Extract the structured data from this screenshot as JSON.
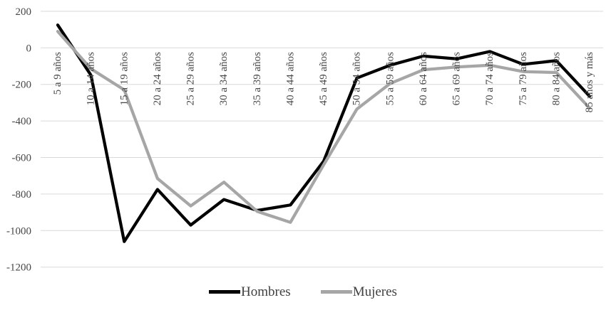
{
  "chart_data": {
    "type": "line",
    "title": "",
    "xlabel": "",
    "ylabel": "",
    "categories": [
      "5 a 9 años",
      "10 a 14 años",
      "15 a 19 años",
      "20 a 24 años",
      "25 a 29 años",
      "30 a 34 años",
      "35 a 39 años",
      "40 a 44 años",
      "45 a 49 años",
      "50 a 54 años",
      "55 a 59 años",
      "60 a 64 años",
      "65 a 69 años",
      "70 a 74 años",
      "75 a 79 años",
      "80 a 84 años",
      "85 años y más"
    ],
    "series": [
      {
        "name": "Hombres",
        "color": "#000000",
        "values": [
          125,
          -150,
          -1060,
          -775,
          -970,
          -830,
          -890,
          -860,
          -620,
          -165,
          -95,
          -45,
          -60,
          -20,
          -90,
          -70,
          -265
        ]
      },
      {
        "name": "Mujeres",
        "color": "#a6a6a6",
        "values": [
          90,
          -115,
          -230,
          -715,
          -865,
          -735,
          -895,
          -955,
          -640,
          -335,
          -195,
          -120,
          -105,
          -95,
          -130,
          -135,
          -330
        ]
      }
    ],
    "ylim": [
      -1200,
      200
    ],
    "yticks": [
      200,
      0,
      -200,
      -400,
      -600,
      -800,
      -1000,
      -1200
    ],
    "grid": true,
    "legend_position": "bottom",
    "colors": {
      "gridline": "#d9d9d9",
      "axis_text": "#474747",
      "legend_text": "#404040",
      "background": "#ffffff"
    }
  },
  "legend": {
    "items": [
      {
        "label": "Hombres"
      },
      {
        "label": "Mujeres"
      }
    ]
  }
}
